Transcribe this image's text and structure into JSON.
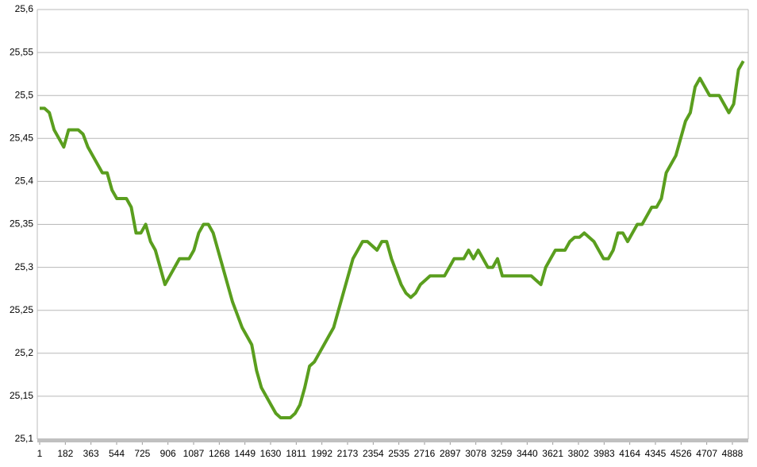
{
  "chart_data": {
    "type": "line",
    "x": [
      1,
      35,
      69,
      103,
      137,
      171,
      205,
      239,
      273,
      307,
      341,
      375,
      409,
      443,
      477,
      511,
      545,
      579,
      613,
      647,
      681,
      715,
      749,
      783,
      817,
      851,
      885,
      919,
      953,
      987,
      1021,
      1055,
      1089,
      1123,
      1157,
      1191,
      1225,
      1259,
      1293,
      1327,
      1361,
      1395,
      1429,
      1463,
      1497,
      1531,
      1565,
      1599,
      1633,
      1667,
      1701,
      1735,
      1769,
      1803,
      1837,
      1871,
      1905,
      1939,
      1973,
      2007,
      2041,
      2075,
      2109,
      2143,
      2177,
      2211,
      2245,
      2279,
      2313,
      2347,
      2381,
      2415,
      2449,
      2483,
      2517,
      2551,
      2585,
      2619,
      2653,
      2687,
      2721,
      2755,
      2789,
      2823,
      2857,
      2891,
      2925,
      2959,
      2993,
      3027,
      3061,
      3095,
      3129,
      3163,
      3197,
      3231,
      3265,
      3299,
      3333,
      3367,
      3401,
      3435,
      3469,
      3503,
      3537,
      3571,
      3605,
      3639,
      3673,
      3707,
      3741,
      3775,
      3809,
      3843,
      3877,
      3911,
      3945,
      3979,
      4013,
      4047,
      4081,
      4115,
      4149,
      4183,
      4217,
      4251,
      4285,
      4319,
      4353,
      4387,
      4421,
      4455,
      4489,
      4523,
      4557,
      4591,
      4625,
      4659,
      4693,
      4727,
      4761,
      4795,
      4829,
      4863,
      4897,
      4931,
      4965
    ],
    "series": [
      {
        "color": "#5a9e1e",
        "values": [
          25.485,
          25.485,
          25.48,
          25.46,
          25.45,
          25.44,
          25.46,
          25.46,
          25.46,
          25.455,
          25.44,
          25.43,
          25.42,
          25.41,
          25.41,
          25.39,
          25.38,
          25.38,
          25.38,
          25.37,
          25.34,
          25.34,
          25.35,
          25.33,
          25.32,
          25.3,
          25.28,
          25.29,
          25.3,
          25.31,
          25.31,
          25.31,
          25.32,
          25.34,
          25.35,
          25.35,
          25.34,
          25.32,
          25.3,
          25.28,
          25.26,
          25.245,
          25.23,
          25.22,
          25.21,
          25.18,
          25.16,
          25.15,
          25.14,
          25.13,
          25.125,
          25.125,
          25.125,
          25.13,
          25.14,
          25.16,
          25.185,
          25.19,
          25.2,
          25.21,
          25.22,
          25.23,
          25.25,
          25.27,
          25.29,
          25.31,
          25.32,
          25.33,
          25.33,
          25.325,
          25.32,
          25.33,
          25.33,
          25.31,
          25.295,
          25.28,
          25.27,
          25.265,
          25.27,
          25.28,
          25.285,
          25.29,
          25.29,
          25.29,
          25.29,
          25.3,
          25.31,
          25.31,
          25.31,
          25.32,
          25.31,
          25.32,
          25.31,
          25.3,
          25.3,
          25.31,
          25.29,
          25.29,
          25.29,
          25.29,
          25.29,
          25.29,
          25.29,
          25.285,
          25.28,
          25.3,
          25.31,
          25.32,
          25.32,
          25.32,
          25.33,
          25.335,
          25.335,
          25.34,
          25.335,
          25.33,
          25.32,
          25.31,
          25.31,
          25.32,
          25.34,
          25.34,
          25.33,
          25.34,
          25.35,
          25.35,
          25.36,
          25.37,
          25.37,
          25.38,
          25.41,
          25.42,
          25.43,
          25.45,
          25.47,
          25.48,
          25.51,
          25.52,
          25.51,
          25.5,
          25.5,
          25.5,
          25.49,
          25.48,
          25.49,
          25.53,
          25.54
        ]
      }
    ],
    "xlim": [
      1,
      5000
    ],
    "xticks": [
      1,
      182,
      363,
      544,
      725,
      906,
      1087,
      1268,
      1449,
      1630,
      1811,
      1992,
      2173,
      2354,
      2535,
      2716,
      2897,
      3078,
      3259,
      3440,
      3621,
      3802,
      3983,
      4164,
      4345,
      4526,
      4707,
      4888
    ],
    "ylim": [
      25.1,
      25.6
    ],
    "yticks": [
      {
        "value": 25.1,
        "label": "25,1"
      },
      {
        "value": 25.15,
        "label": "25,15"
      },
      {
        "value": 25.2,
        "label": "25,2"
      },
      {
        "value": 25.25,
        "label": "25,25"
      },
      {
        "value": 25.3,
        "label": "25,3"
      },
      {
        "value": 25.35,
        "label": "25,35"
      },
      {
        "value": 25.4,
        "label": "25,4"
      },
      {
        "value": 25.45,
        "label": "25,45"
      },
      {
        "value": 25.5,
        "label": "25,5"
      },
      {
        "value": 25.55,
        "label": "25,55"
      },
      {
        "value": 25.6,
        "label": "25,6"
      }
    ],
    "grid": true
  }
}
